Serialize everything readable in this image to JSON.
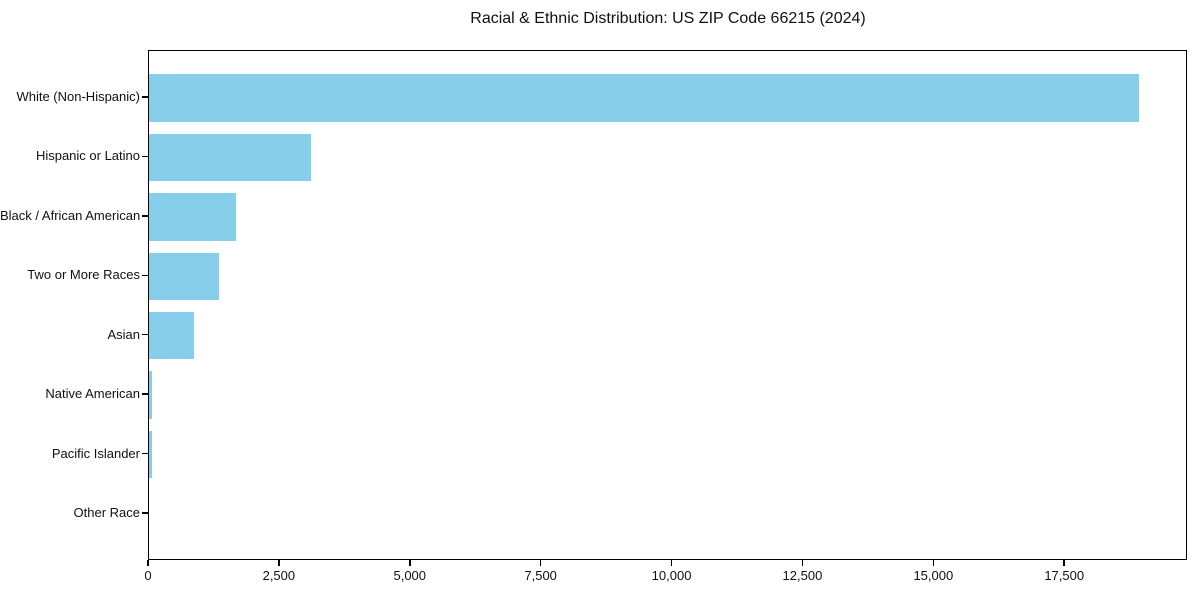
{
  "chart_data": {
    "type": "bar",
    "orientation": "horizontal",
    "title": "Racial & Ethnic Distribution: US ZIP Code 66215 (2024)",
    "categories": [
      "White (Non-Hispanic)",
      "Hispanic or Latino",
      "Black / African American",
      "Two or More Races",
      "Asian",
      "Native American",
      "Pacific Islander",
      "Other Race"
    ],
    "values": [
      18900,
      3100,
      1670,
      1330,
      850,
      50,
      60,
      0
    ],
    "xlabel": "",
    "ylabel": "",
    "xlim": [
      0,
      19845
    ],
    "x_ticks": [
      0,
      2500,
      5000,
      7500,
      10000,
      12500,
      15000,
      17500
    ],
    "x_tick_labels": [
      "0",
      "2,500",
      "5,000",
      "7,500",
      "10,000",
      "12,500",
      "15,000",
      "17,500"
    ],
    "bar_color": "#87CEEB",
    "spine_color": "#000000",
    "grid": false,
    "legend": null
  }
}
